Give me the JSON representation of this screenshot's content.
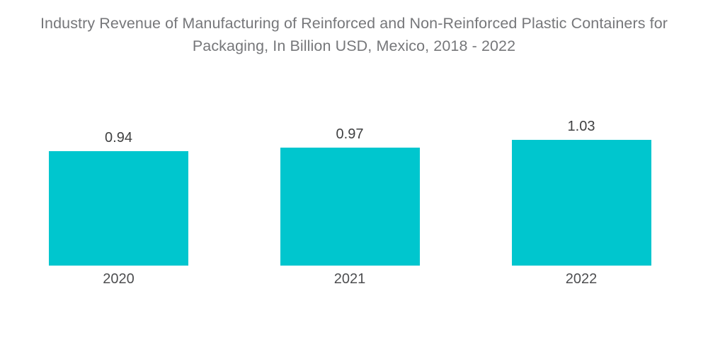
{
  "chart_data": {
    "type": "bar",
    "title": "Industry Revenue of Manufacturing of Reinforced and Non-Reinforced Plastic Containers for Packaging, In Billion USD, Mexico, 2018 - 2022",
    "categories": [
      "2020",
      "2021",
      "2022"
    ],
    "values": [
      0.94,
      0.97,
      1.03
    ],
    "value_labels": [
      "0.94",
      "0.97",
      "1.03"
    ],
    "unit": "Billion USD",
    "xlabel": "",
    "ylabel": "",
    "ylim": [
      0,
      1.2
    ],
    "grid": false,
    "legend": false,
    "axes_visible": false,
    "value_labels_visible": true,
    "colors": {
      "bar": "#00c6ce",
      "title_text": "#76777a",
      "value_label_text": "#3f4041",
      "category_label_text": "#4d4e50",
      "background": "#ffffff"
    }
  }
}
